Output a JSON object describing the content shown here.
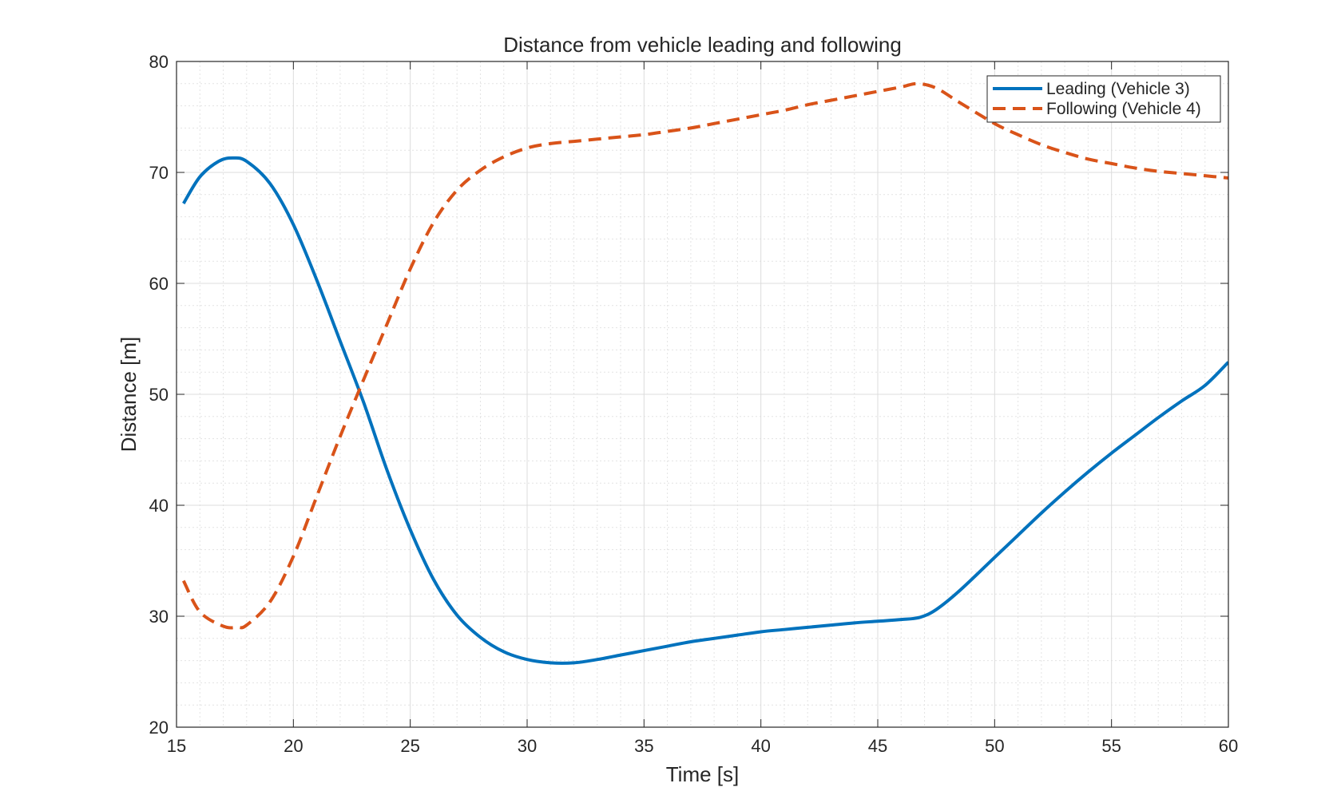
{
  "chart_data": {
    "type": "line",
    "title": "Distance from vehicle leading and following",
    "xlabel": "Time [s]",
    "ylabel": "Distance [m]",
    "xlim": [
      15,
      60
    ],
    "ylim": [
      20,
      80
    ],
    "xticks": [
      15,
      20,
      25,
      30,
      35,
      40,
      45,
      50,
      55,
      60
    ],
    "yticks": [
      20,
      30,
      40,
      50,
      60,
      70,
      80
    ],
    "grid": true,
    "minor_grid": true,
    "legend_position": "top-right",
    "series": [
      {
        "name": "Leading (Vehicle 3)",
        "style": "solid",
        "color": "#0072BD",
        "points": [
          [
            15.3,
            67.2
          ],
          [
            16,
            69.6
          ],
          [
            16.8,
            71.0
          ],
          [
            17.4,
            71.3
          ],
          [
            18,
            71.0
          ],
          [
            19,
            69.0
          ],
          [
            20,
            65.3
          ],
          [
            21,
            60.3
          ],
          [
            22,
            54.8
          ],
          [
            23,
            49.3
          ],
          [
            24,
            43.2
          ],
          [
            25,
            37.8
          ],
          [
            26,
            33.3
          ],
          [
            27,
            30.1
          ],
          [
            28,
            28.1
          ],
          [
            29,
            26.8
          ],
          [
            30,
            26.1
          ],
          [
            31,
            25.8
          ],
          [
            32,
            25.8
          ],
          [
            33,
            26.1
          ],
          [
            34,
            26.5
          ],
          [
            35,
            26.9
          ],
          [
            36,
            27.3
          ],
          [
            37,
            27.7
          ],
          [
            38,
            28.0
          ],
          [
            39,
            28.3
          ],
          [
            40,
            28.6
          ],
          [
            41,
            28.8
          ],
          [
            42,
            29.0
          ],
          [
            43,
            29.2
          ],
          [
            44,
            29.4
          ],
          [
            45,
            29.55
          ],
          [
            46,
            29.7
          ],
          [
            46.8,
            29.9
          ],
          [
            47.5,
            30.6
          ],
          [
            48.5,
            32.3
          ],
          [
            50,
            35.3
          ],
          [
            51,
            37.3
          ],
          [
            52,
            39.3
          ],
          [
            53,
            41.2
          ],
          [
            54,
            43.0
          ],
          [
            55,
            44.7
          ],
          [
            56,
            46.3
          ],
          [
            57,
            47.9
          ],
          [
            58,
            49.4
          ],
          [
            59,
            50.8
          ],
          [
            60,
            52.9
          ]
        ]
      },
      {
        "name": "Following (Vehicle 4)",
        "style": "dashed",
        "color": "#D95319",
        "points": [
          [
            15.3,
            33.2
          ],
          [
            16,
            30.4
          ],
          [
            17,
            29.1
          ],
          [
            17.6,
            29.0
          ],
          [
            18,
            29.2
          ],
          [
            19,
            31.3
          ],
          [
            20,
            35.4
          ],
          [
            21,
            40.8
          ],
          [
            22,
            46.2
          ],
          [
            23,
            51.3
          ],
          [
            24,
            56.3
          ],
          [
            25,
            61.3
          ],
          [
            26,
            65.5
          ],
          [
            27,
            68.4
          ],
          [
            28,
            70.2
          ],
          [
            29,
            71.4
          ],
          [
            30,
            72.2
          ],
          [
            31,
            72.6
          ],
          [
            32,
            72.8
          ],
          [
            33,
            73.0
          ],
          [
            34,
            73.2
          ],
          [
            35,
            73.4
          ],
          [
            36,
            73.7
          ],
          [
            37,
            74.0
          ],
          [
            38,
            74.4
          ],
          [
            39,
            74.8
          ],
          [
            40,
            75.2
          ],
          [
            41,
            75.6
          ],
          [
            42,
            76.1
          ],
          [
            43,
            76.5
          ],
          [
            44,
            76.9
          ],
          [
            45,
            77.3
          ],
          [
            46,
            77.7
          ],
          [
            46.7,
            78.0
          ],
          [
            47.5,
            77.6
          ],
          [
            48.5,
            76.3
          ],
          [
            50,
            74.4
          ],
          [
            51,
            73.4
          ],
          [
            52,
            72.5
          ],
          [
            53,
            71.8
          ],
          [
            54,
            71.2
          ],
          [
            55,
            70.8
          ],
          [
            56,
            70.4
          ],
          [
            57,
            70.1
          ],
          [
            58,
            69.9
          ],
          [
            59,
            69.7
          ],
          [
            60,
            69.5
          ]
        ]
      }
    ]
  }
}
